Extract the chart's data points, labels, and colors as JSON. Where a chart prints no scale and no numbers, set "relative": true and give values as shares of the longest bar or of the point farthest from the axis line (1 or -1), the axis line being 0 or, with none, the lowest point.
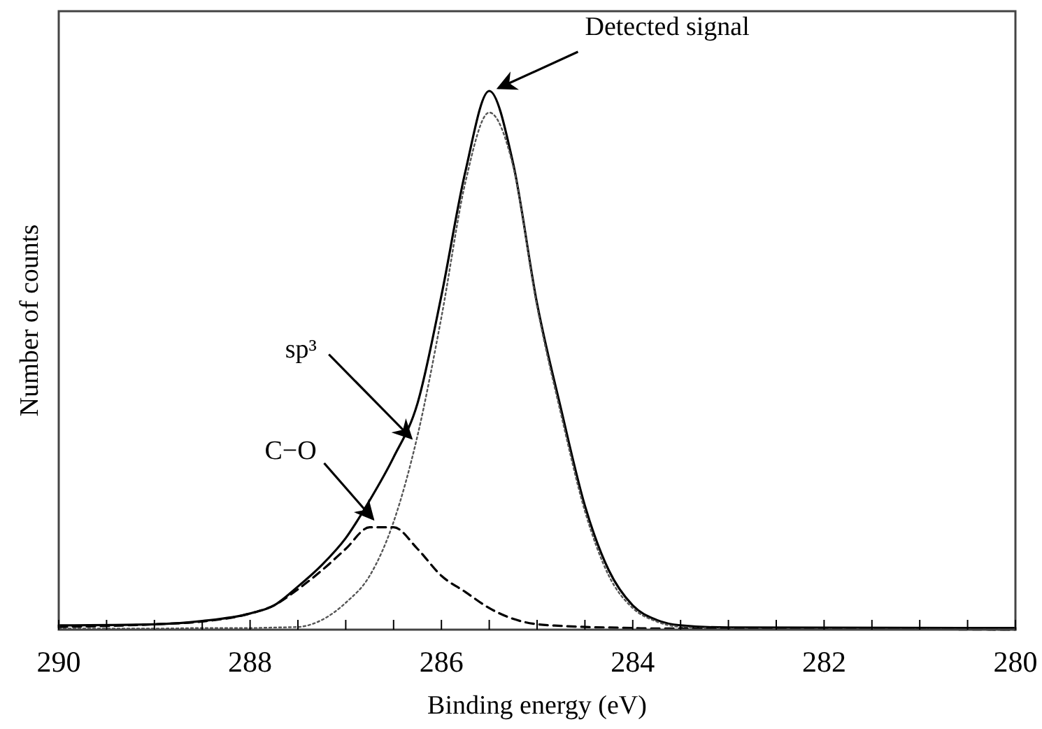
{
  "chart_data": {
    "type": "line",
    "relative": true,
    "xlabel": "Binding energy (eV)",
    "ylabel": "Number of counts",
    "xlim": [
      290,
      280
    ],
    "xticks": [
      290,
      {
        "value": 289.5,
        "label": null
      },
      {
        "value": 289,
        "label": null
      },
      {
        "value": 288.5,
        "label": null
      },
      288,
      {
        "value": 287.5,
        "label": null
      },
      {
        "value": 287,
        "label": null
      },
      {
        "value": 286.5,
        "label": null
      },
      286,
      {
        "value": 285.5,
        "label": null
      },
      {
        "value": 285,
        "label": null
      },
      {
        "value": 284.5,
        "label": null
      },
      284,
      {
        "value": 283.5,
        "label": null
      },
      {
        "value": 283,
        "label": null
      },
      {
        "value": 282.5,
        "label": null
      },
      282,
      {
        "value": 281.5,
        "label": null
      },
      {
        "value": 281,
        "label": null
      },
      {
        "value": 280.5,
        "label": null
      },
      280
    ],
    "x": [
      290,
      289,
      288.5,
      288,
      287.75,
      287.5,
      287.25,
      287,
      286.75,
      286.5,
      286.25,
      286,
      285.75,
      285.5,
      285.25,
      285,
      284.75,
      284.5,
      284.25,
      284,
      283.75,
      283.5,
      283,
      280
    ],
    "series": [
      {
        "color": "#000000",
        "line_style": "solid",
        "values": [
          0.008,
          0.01,
          0.016,
          0.03,
          0.045,
          0.08,
          0.12,
          0.17,
          0.24,
          0.32,
          0.42,
          0.62,
          0.85,
          1.0,
          0.865,
          0.605,
          0.41,
          0.23,
          0.11,
          0.045,
          0.018,
          0.008,
          0.004,
          0.003
        ]
      },
      {
        "color": "#555555",
        "line_style": "dotted",
        "values": [
          0.002,
          0.002,
          0.003,
          0.003,
          0.004,
          0.005,
          0.018,
          0.05,
          0.1,
          0.2,
          0.36,
          0.58,
          0.83,
          0.96,
          0.86,
          0.6,
          0.4,
          0.22,
          0.1,
          0.04,
          0.015,
          0.005,
          0.002,
          0
        ]
      },
      {
        "color": "#000000",
        "line_style": "dashed",
        "values": [
          0.005,
          0.01,
          0.015,
          0.03,
          0.045,
          0.075,
          0.11,
          0.15,
          0.19,
          0.19,
          0.15,
          0.1,
          0.07,
          0.04,
          0.02,
          0.01,
          0.007,
          0.005,
          0.004,
          0.003,
          0.002,
          0.002,
          0.002,
          0
        ]
      }
    ],
    "annotations": [
      {
        "text": "Detected signal",
        "x": 285.45,
        "y": 1.0
      },
      {
        "text": "sp³",
        "x": 286.27,
        "y": 0.35
      },
      {
        "text": "C−O",
        "x": 286.67,
        "y": 0.2
      }
    ]
  }
}
